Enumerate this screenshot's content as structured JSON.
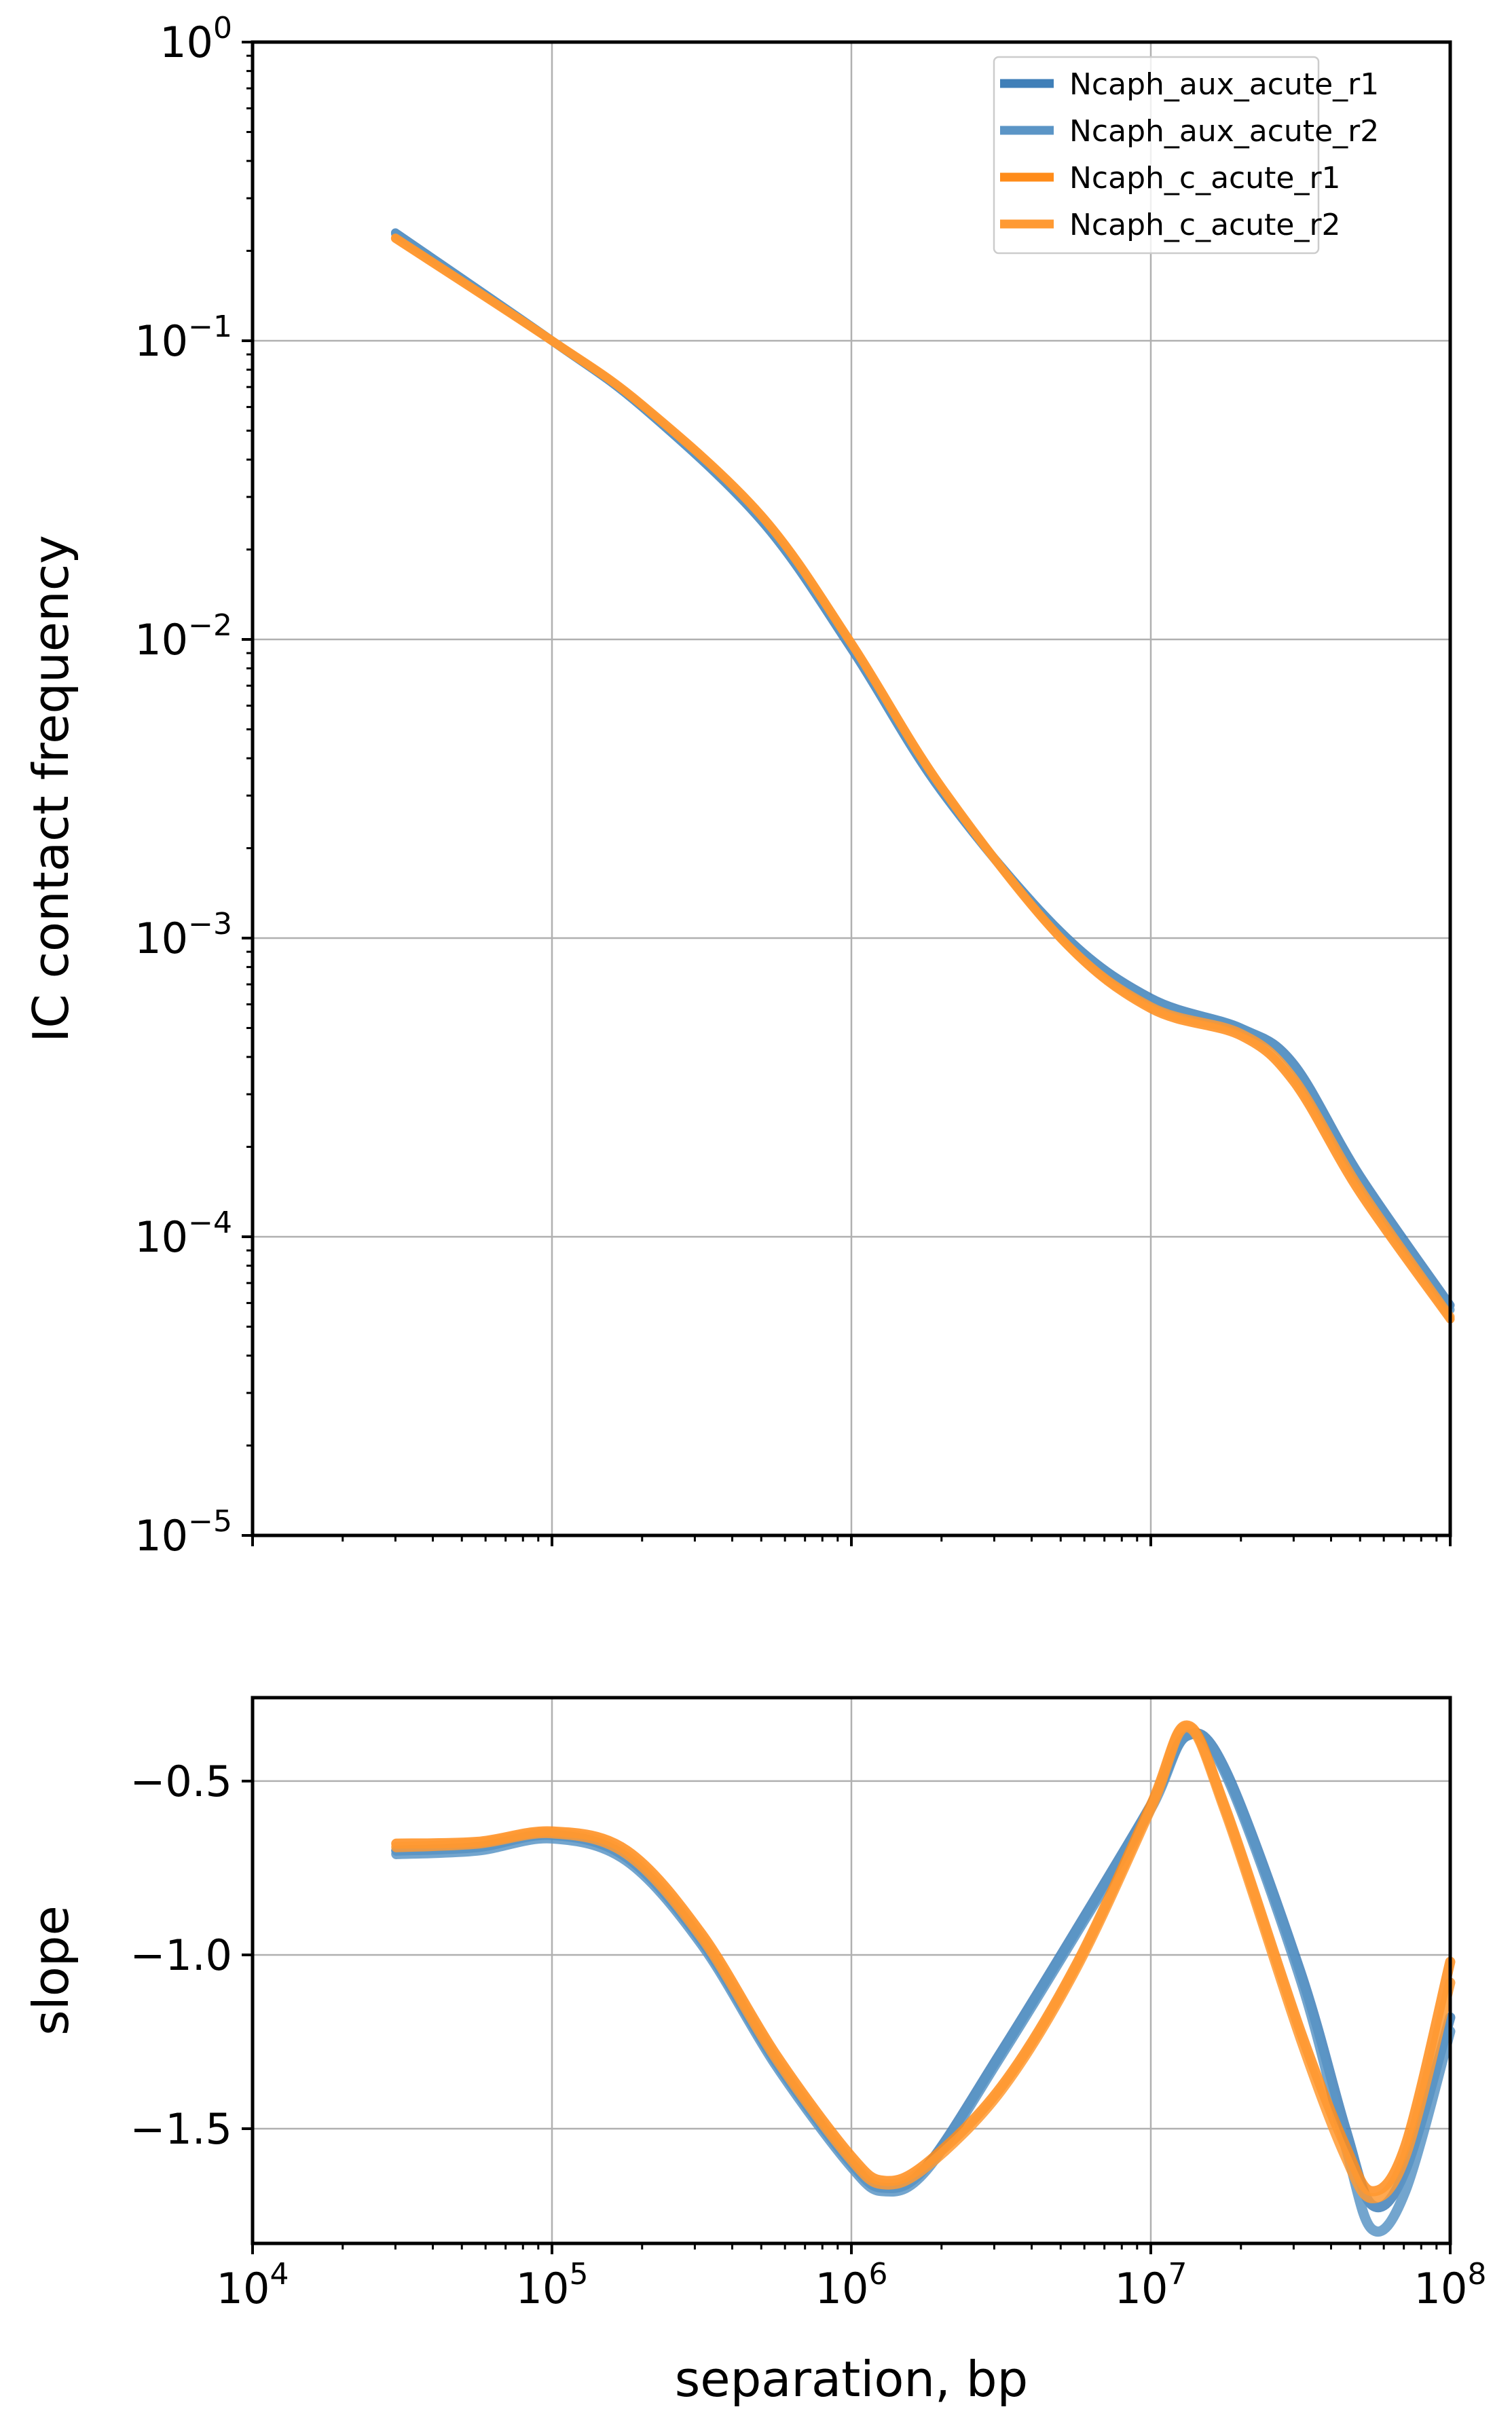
{
  "chart_data": [
    {
      "type": "line",
      "panel": "top",
      "title": "",
      "xlabel": "",
      "ylabel": "IC contact frequency",
      "xscale": "log",
      "yscale": "log",
      "xlim": [
        10000,
        100000000
      ],
      "ylim": [
        1e-05,
        1
      ],
      "grid": true,
      "legend_position": "top-right",
      "yticks": [
        {
          "base": "10",
          "exp": "0",
          "value": 1
        },
        {
          "base": "10",
          "exp": "−1",
          "value": 0.1
        },
        {
          "base": "10",
          "exp": "−2",
          "value": 0.01
        },
        {
          "base": "10",
          "exp": "−3",
          "value": 0.001
        },
        {
          "base": "10",
          "exp": "−4",
          "value": 0.0001
        },
        {
          "base": "10",
          "exp": "−5",
          "value": 1e-05
        }
      ],
      "x": [
        30000,
        100000,
        200000,
        500000,
        1000000,
        2000000,
        5000000,
        10000000,
        20000000,
        30000000,
        50000000,
        100000000
      ],
      "series": [
        {
          "name": "Ncaph_aux_acute_r1",
          "color": "#3f7fb8",
          "values": [
            0.23,
            0.1,
            0.06,
            0.025,
            0.0093,
            0.0031,
            0.00105,
            0.00063,
            0.0005,
            0.00038,
            0.00016,
            5.9e-05
          ]
        },
        {
          "name": "Ncaph_aux_acute_r2",
          "color": "#5b95c6",
          "values": [
            0.228,
            0.1,
            0.06,
            0.025,
            0.0094,
            0.0031,
            0.00104,
            0.00062,
            0.0005,
            0.00037,
            0.000155,
            5.7e-05
          ]
        },
        {
          "name": "Ncaph_c_acute_r1",
          "color": "#ff8c1a",
          "values": [
            0.22,
            0.1,
            0.061,
            0.026,
            0.0097,
            0.0032,
            0.001,
            0.00058,
            0.00047,
            0.00033,
            0.00014,
            5.3e-05
          ]
        },
        {
          "name": "Ncaph_c_acute_r2",
          "color": "#ff9a33",
          "values": [
            0.221,
            0.1,
            0.061,
            0.026,
            0.0097,
            0.0032,
            0.001,
            0.00059,
            0.00048,
            0.00034,
            0.000145,
            5.4e-05
          ]
        }
      ]
    },
    {
      "type": "line",
      "panel": "bottom",
      "xlabel": "separation, bp",
      "ylabel": "slope",
      "xscale": "log",
      "xlim": [
        10000,
        100000000
      ],
      "ylim": [
        -1.83,
        -0.26
      ],
      "grid": true,
      "yticks": [
        {
          "label": "−0.5",
          "value": -0.5
        },
        {
          "label": "−1.0",
          "value": -1.0
        },
        {
          "label": "−1.5",
          "value": -1.5
        }
      ],
      "xticks": [
        {
          "base": "10",
          "exp": "4",
          "value": 10000
        },
        {
          "base": "10",
          "exp": "5",
          "value": 100000
        },
        {
          "base": "10",
          "exp": "6",
          "value": 1000000
        },
        {
          "base": "10",
          "exp": "7",
          "value": 10000000
        },
        {
          "base": "10",
          "exp": "8",
          "value": 100000000
        }
      ],
      "log10_x": [
        4.48,
        4.75,
        5.0,
        5.25,
        5.5,
        5.75,
        6.0,
        6.11,
        6.25,
        6.5,
        6.75,
        7.0,
        7.12,
        7.25,
        7.5,
        7.65,
        7.74,
        7.85,
        8.0
      ],
      "series": [
        {
          "name": "Ncaph_aux_acute_r1",
          "color": "#3f7fb8",
          "values": [
            -0.7,
            -0.69,
            -0.655,
            -0.72,
            -0.96,
            -1.31,
            -1.6,
            -1.67,
            -1.61,
            -1.28,
            -0.93,
            -0.57,
            -0.37,
            -0.47,
            -1.05,
            -1.5,
            -1.72,
            -1.62,
            -1.18
          ]
        },
        {
          "name": "Ncaph_aux_acute_r2",
          "color": "#5b95c6",
          "values": [
            -0.71,
            -0.7,
            -0.665,
            -0.73,
            -0.97,
            -1.32,
            -1.61,
            -1.68,
            -1.62,
            -1.29,
            -0.94,
            -0.58,
            -0.37,
            -0.48,
            -1.07,
            -1.55,
            -1.79,
            -1.68,
            -1.22
          ]
        },
        {
          "name": "Ncaph_c_acute_r1",
          "color": "#ff8c1a",
          "values": [
            -0.68,
            -0.675,
            -0.645,
            -0.7,
            -0.94,
            -1.29,
            -1.58,
            -1.65,
            -1.6,
            -1.38,
            -1.03,
            -0.57,
            -0.34,
            -0.58,
            -1.22,
            -1.55,
            -1.68,
            -1.55,
            -1.02
          ]
        },
        {
          "name": "Ncaph_c_acute_r2",
          "color": "#ff9a33",
          "values": [
            -0.69,
            -0.68,
            -0.65,
            -0.71,
            -0.95,
            -1.3,
            -1.59,
            -1.66,
            -1.61,
            -1.39,
            -1.04,
            -0.58,
            -0.345,
            -0.59,
            -1.24,
            -1.58,
            -1.7,
            -1.58,
            -1.08
          ]
        }
      ]
    }
  ]
}
